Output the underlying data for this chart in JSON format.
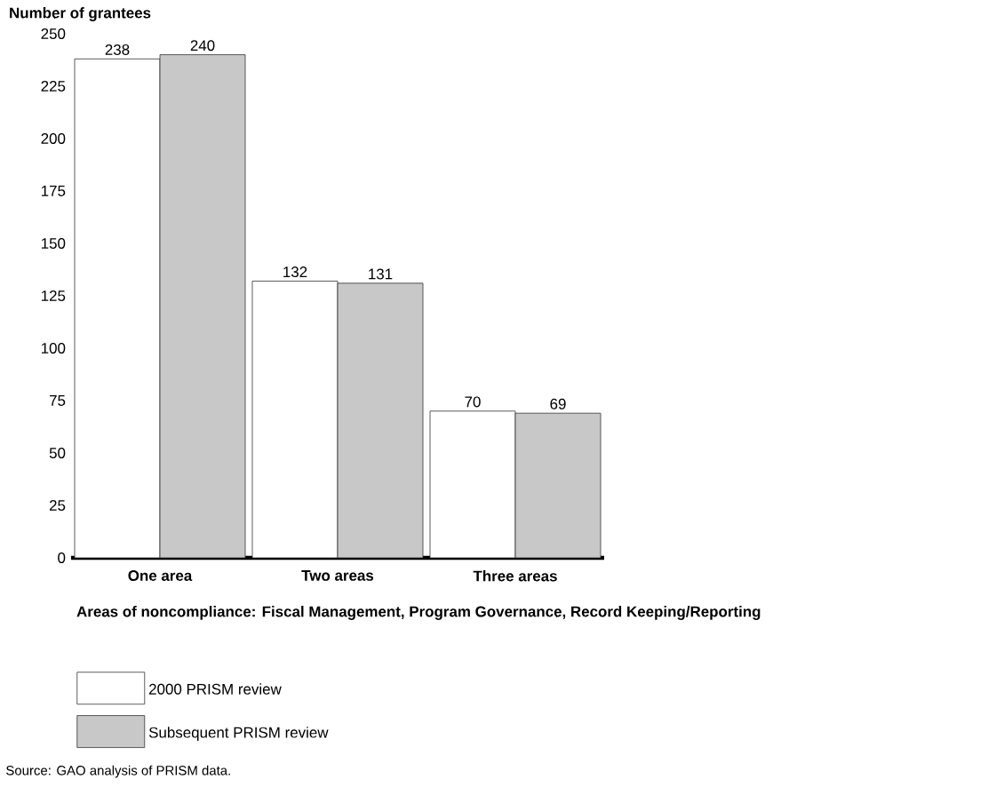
{
  "chart_data": {
    "type": "bar",
    "ylabel": "Number of grantees",
    "xlabel": "Areas of noncompliance: Fiscal Management, Program Governance, Record Keeping/Reporting",
    "categories": [
      "One area",
      "Two areas",
      "Three areas"
    ],
    "series": [
      {
        "name": "2000 PRISM review",
        "color": "#ffffff",
        "values": [
          238,
          132,
          70
        ]
      },
      {
        "name": "Subsequent PRISM review",
        "color": "#c8c8c8",
        "values": [
          240,
          131,
          69
        ]
      }
    ],
    "ylim": [
      0,
      250
    ],
    "yticks": [
      0,
      25,
      50,
      75,
      100,
      125,
      150,
      175,
      200,
      225,
      250
    ],
    "data_labels": true,
    "legend": "bottom",
    "annotations": [
      "Source: GAO analysis of PRISM data."
    ]
  }
}
